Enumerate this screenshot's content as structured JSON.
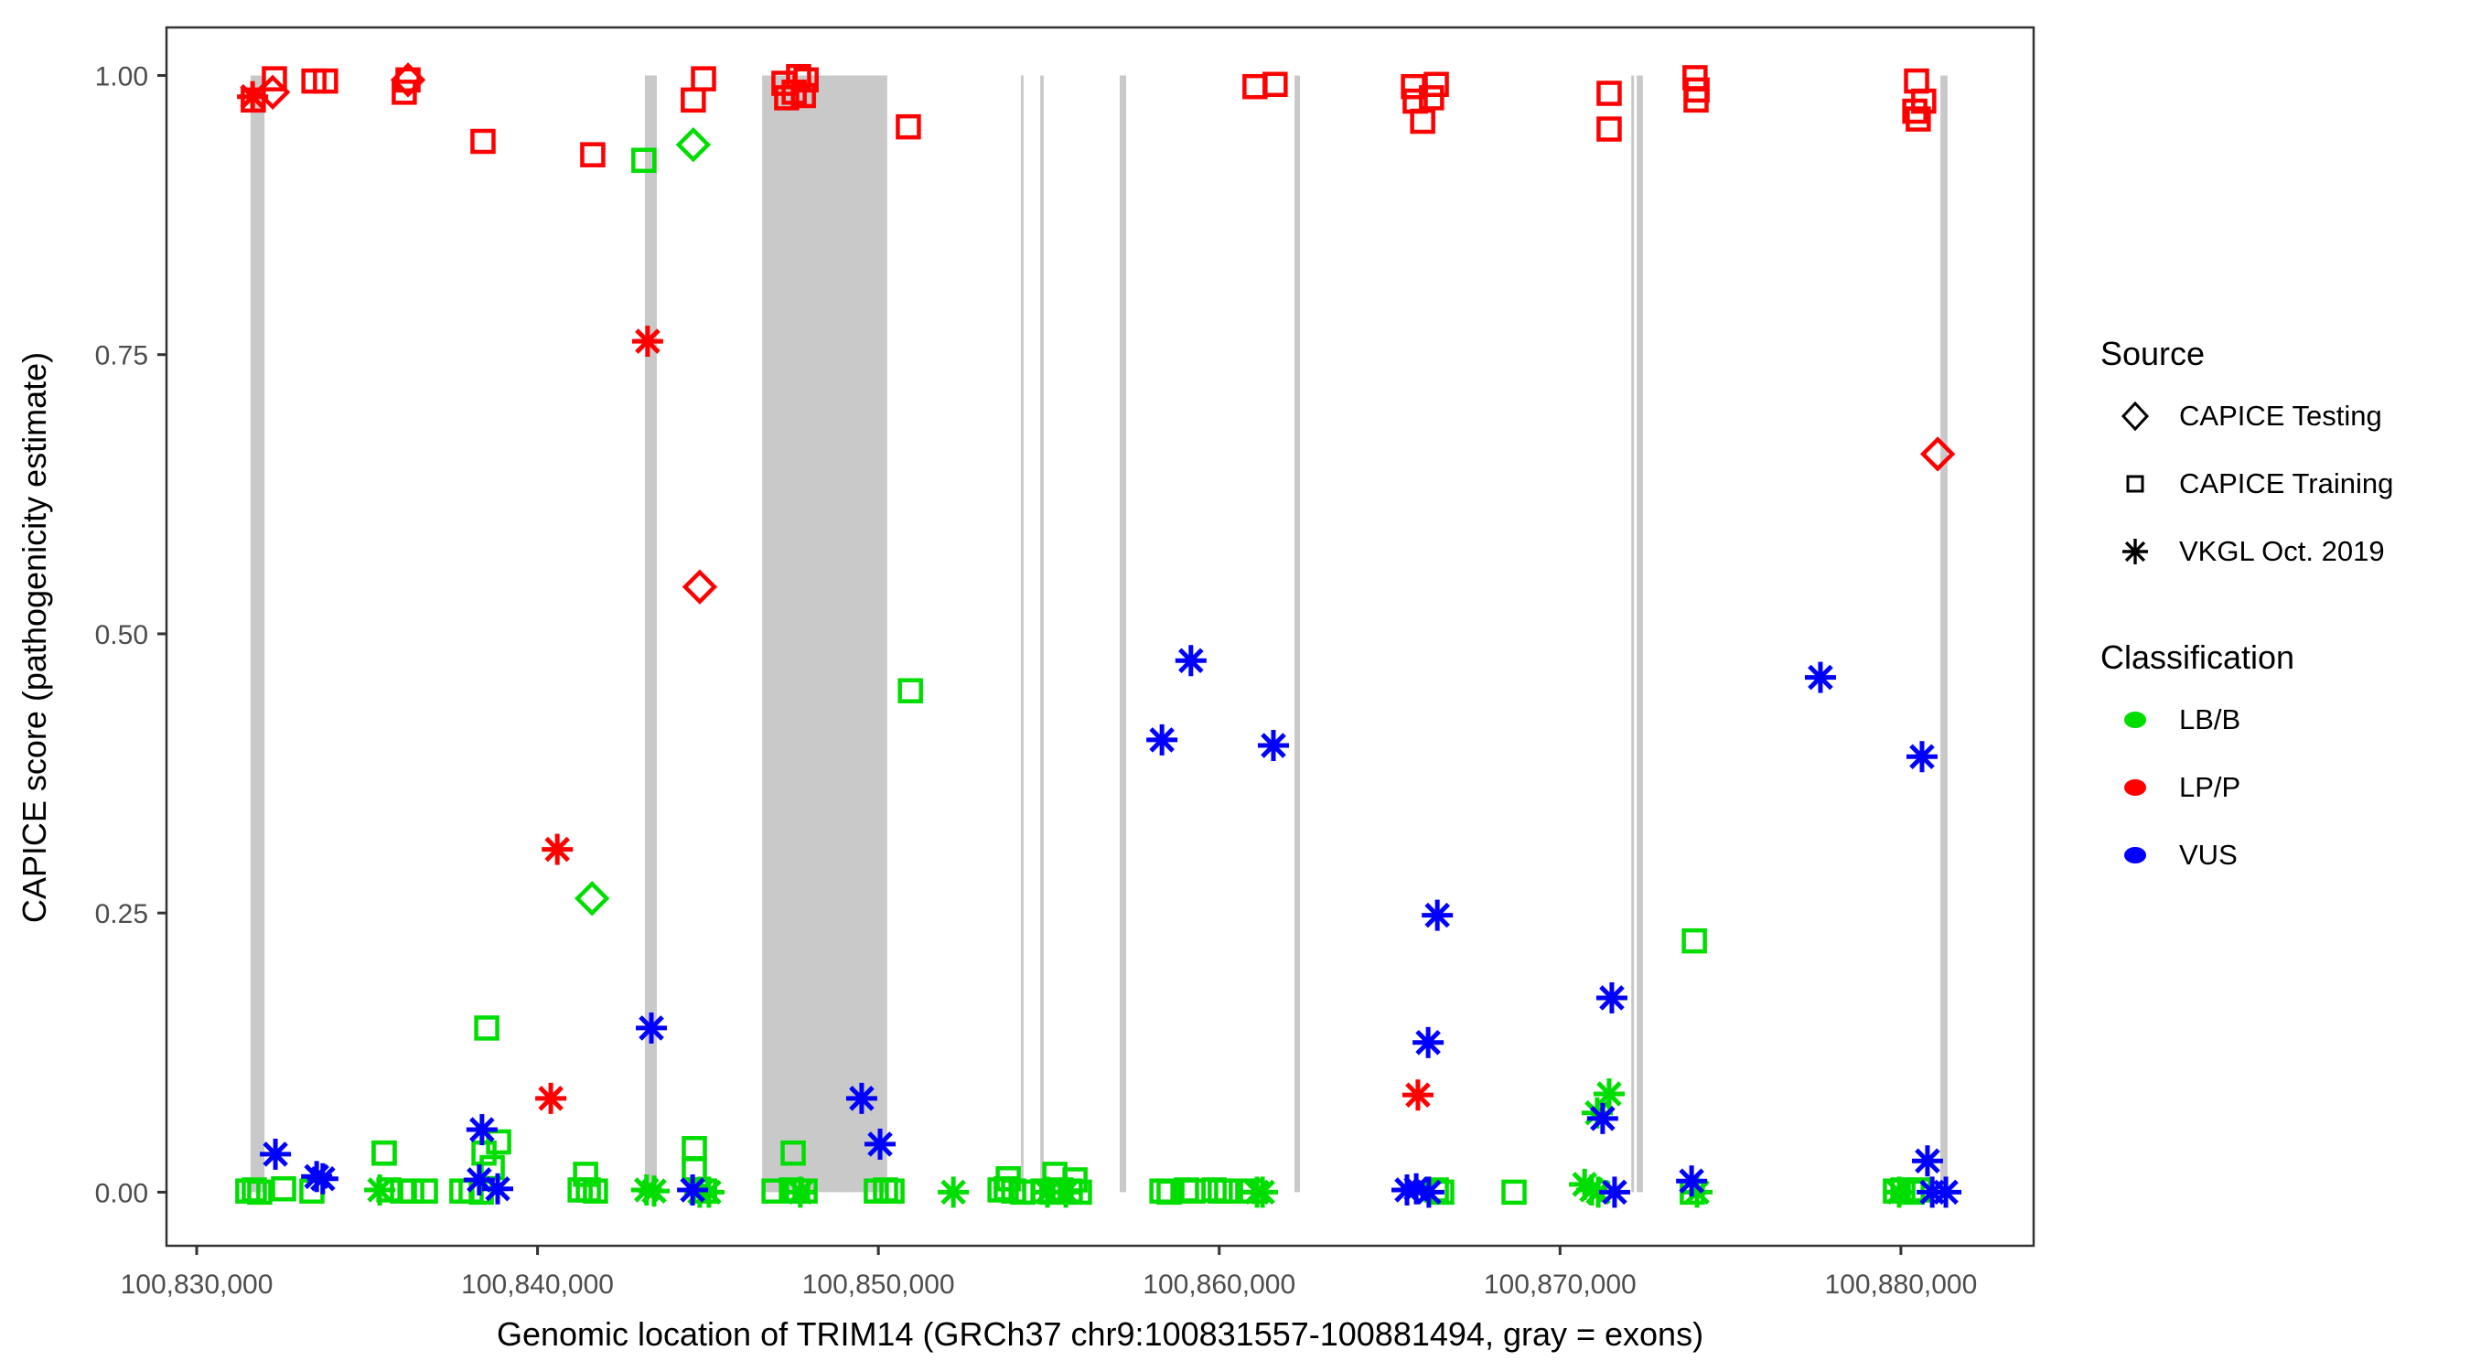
{
  "chart_data": {
    "type": "scatter",
    "xlabel": "Genomic location of TRIM14 (GRCh37 chr9:100831557-100881494, gray = exons)",
    "ylabel": "CAPICE score (pathogenicity estimate)",
    "x_range": [
      100829114,
      100883895
    ],
    "y_range": [
      -0.048,
      1.043
    ],
    "x_ticks": [
      100830000,
      100840000,
      100850000,
      100860000,
      100870000,
      100880000
    ],
    "x_tick_labels": [
      "100,830,000",
      "100,840,000",
      "100,850,000",
      "100,860,000",
      "100,870,000",
      "100,880,000"
    ],
    "y_ticks": [
      0,
      0.25,
      0.5,
      0.75,
      1
    ],
    "y_tick_labels": [
      "0.00",
      "0.25",
      "0.50",
      "0.75",
      "1.00"
    ],
    "grid": "off",
    "colors": {
      "lbb": "#00DD00",
      "lpp": "#FF0000",
      "vus": "#0000FF",
      "exon": "#C9C9C9",
      "axis_text": "#4D4D4D",
      "border": "#333333"
    },
    "exons": [
      [
        100831580,
        100831990
      ],
      [
        100843150,
        100843500
      ],
      [
        100846590,
        100850260
      ],
      [
        100854180,
        100854260
      ],
      [
        100854750,
        100854850
      ],
      [
        100857080,
        100857270
      ],
      [
        100862210,
        100862370
      ],
      [
        100872090,
        100872170
      ],
      [
        100872250,
        100872430
      ],
      [
        100881160,
        100881370
      ]
    ],
    "series": [
      {
        "name": "LB/B CAPICE Training",
        "marker": "square",
        "classification": "LB/B",
        "source": "CAPICE Training",
        "color": "#00DD00",
        "points": [
          [
            100843120,
            0.924
          ],
          [
            100838510,
            0.147
          ],
          [
            100850940,
            0.449
          ],
          [
            100873940,
            0.225
          ],
          [
            100844600,
            0.039
          ],
          [
            100844600,
            0.021
          ],
          [
            100838860,
            0.045
          ],
          [
            100838430,
            0.035
          ],
          [
            100838670,
            0.022
          ],
          [
            100835500,
            0.035
          ],
          [
            100847500,
            0.035
          ],
          [
            100841410,
            0.016
          ],
          [
            100855180,
            0.016
          ],
          [
            100855770,
            0.011
          ],
          [
            100853810,
            0.012
          ],
          [
            100831500,
            0.001
          ],
          [
            100831690,
            0.002
          ],
          [
            100831850,
            0.0
          ],
          [
            100832550,
            0.003
          ],
          [
            100833380,
            0.001
          ],
          [
            100835640,
            0.002
          ],
          [
            100836040,
            0.001
          ],
          [
            100836310,
            0.001
          ],
          [
            100836710,
            0.001
          ],
          [
            100837780,
            0.001
          ],
          [
            100838050,
            0.001
          ],
          [
            100838350,
            0.0
          ],
          [
            100841250,
            0.002
          ],
          [
            100841490,
            0.002
          ],
          [
            100841700,
            0.001
          ],
          [
            100844900,
            0.001
          ],
          [
            100846940,
            0.001
          ],
          [
            100847450,
            0.002
          ],
          [
            100847630,
            0.001
          ],
          [
            100847850,
            0.001
          ],
          [
            100849940,
            0.001
          ],
          [
            100850210,
            0.002
          ],
          [
            100850400,
            0.001
          ],
          [
            100853570,
            0.002
          ],
          [
            100853750,
            0.003
          ],
          [
            100853970,
            0.001
          ],
          [
            100854240,
            0.0
          ],
          [
            100854830,
            0.001
          ],
          [
            100855090,
            0.0
          ],
          [
            100855360,
            0.002
          ],
          [
            100855630,
            0.001
          ],
          [
            100855900,
            0.0
          ],
          [
            100858320,
            0.001
          ],
          [
            100858530,
            0.0
          ],
          [
            100859040,
            0.002
          ],
          [
            100859230,
            0.001
          ],
          [
            100859850,
            0.002
          ],
          [
            100860030,
            0.001
          ],
          [
            100860220,
            0.001
          ],
          [
            100860950,
            0.001
          ],
          [
            100866370,
            0.002
          ],
          [
            100866530,
            0.0
          ],
          [
            100868650,
            0.0
          ],
          [
            100873880,
            0.0
          ],
          [
            100879840,
            0.001
          ],
          [
            100880060,
            0.002
          ],
          [
            100880330,
            0.0
          ],
          [
            100880540,
            0.002
          ]
        ]
      },
      {
        "name": "LB/B CAPICE Testing",
        "marker": "diamond",
        "classification": "LB/B",
        "source": "CAPICE Testing",
        "color": "#00DD00",
        "points": [
          [
            100844570,
            0.938
          ],
          [
            100841600,
            0.263
          ]
        ]
      },
      {
        "name": "LB/B VKGL Oct. 2019",
        "marker": "asterisk",
        "classification": "LB/B",
        "source": "VKGL Oct. 2019",
        "color": "#00DD00",
        "points": [
          [
            100835370,
            0.002
          ],
          [
            100843200,
            0.002
          ],
          [
            100843420,
            0.001
          ],
          [
            100844760,
            0.0
          ],
          [
            100845030,
            0.0
          ],
          [
            100847710,
            0.0
          ],
          [
            100852200,
            0.0
          ],
          [
            100854960,
            0.0
          ],
          [
            100855500,
            0.0
          ],
          [
            100861110,
            0.0
          ],
          [
            100861270,
            0.0
          ],
          [
            100870720,
            0.007
          ],
          [
            100870930,
            0.002
          ],
          [
            100871120,
            0.0
          ],
          [
            100871440,
            0.088
          ],
          [
            100871090,
            0.071
          ],
          [
            100874020,
            0.0
          ],
          [
            100879950,
            0.0
          ]
        ]
      },
      {
        "name": "LP/P CAPICE Training",
        "marker": "square",
        "classification": "LP/P",
        "source": "CAPICE Training",
        "color": "#FF0000",
        "points": [
          [
            100831660,
            0.978
          ],
          [
            100832280,
            0.997
          ],
          [
            100833440,
            0.995
          ],
          [
            100833780,
            0.995
          ],
          [
            100836090,
            0.985
          ],
          [
            100836200,
            0.996
          ],
          [
            100838400,
            0.941
          ],
          [
            100841620,
            0.929
          ],
          [
            100844570,
            0.978
          ],
          [
            100844870,
            0.997
          ],
          [
            100847230,
            0.993
          ],
          [
            100847660,
            0.999
          ],
          [
            100847880,
            0.996
          ],
          [
            100847530,
            0.985
          ],
          [
            100847800,
            0.982
          ],
          [
            100847310,
            0.98
          ],
          [
            100850880,
            0.954
          ],
          [
            100861050,
            0.99
          ],
          [
            100861640,
            0.992
          ],
          [
            100865700,
            0.99
          ],
          [
            100866370,
            0.992
          ],
          [
            100866230,
            0.98
          ],
          [
            100865750,
            0.977
          ],
          [
            100865970,
            0.959
          ],
          [
            100871440,
            0.984
          ],
          [
            100871440,
            0.952
          ],
          [
            100873960,
            0.998
          ],
          [
            100874020,
            0.987
          ],
          [
            100873990,
            0.978
          ],
          [
            100880460,
            0.995
          ],
          [
            100880670,
            0.977
          ],
          [
            100880410,
            0.968
          ],
          [
            100880510,
            0.961
          ]
        ]
      },
      {
        "name": "LP/P CAPICE Testing",
        "marker": "diamond",
        "classification": "LP/P",
        "source": "CAPICE Testing",
        "color": "#FF0000",
        "points": [
          [
            100832230,
            0.985
          ],
          [
            100836200,
            0.996
          ],
          [
            100844760,
            0.542
          ],
          [
            100881080,
            0.661
          ]
        ]
      },
      {
        "name": "LP/P VKGL Oct. 2019",
        "marker": "asterisk",
        "classification": "LP/P",
        "source": "VKGL Oct. 2019",
        "color": "#FF0000",
        "points": [
          [
            100831640,
            0.981
          ],
          [
            100843230,
            0.762
          ],
          [
            100840580,
            0.307
          ],
          [
            100840390,
            0.084
          ],
          [
            100865830,
            0.087
          ]
        ]
      },
      {
        "name": "VUS VKGL Oct. 2019",
        "marker": "asterisk",
        "classification": "VUS",
        "source": "VKGL Oct. 2019",
        "color": "#0000FF",
        "points": [
          [
            100859170,
            0.476
          ],
          [
            100858320,
            0.405
          ],
          [
            100861590,
            0.4
          ],
          [
            100877640,
            0.461
          ],
          [
            100880620,
            0.39
          ],
          [
            100866400,
            0.248
          ],
          [
            100866130,
            0.134
          ],
          [
            100871520,
            0.174
          ],
          [
            100843340,
            0.147
          ],
          [
            100849510,
            0.084
          ],
          [
            100850050,
            0.043
          ],
          [
            100838370,
            0.056
          ],
          [
            100838290,
            0.011
          ],
          [
            100838830,
            0.003
          ],
          [
            100832310,
            0.034
          ],
          [
            100833520,
            0.014
          ],
          [
            100833700,
            0.012
          ],
          [
            100844550,
            0.002
          ],
          [
            100865510,
            0.002
          ],
          [
            100865780,
            0.003
          ],
          [
            100866150,
            0.0
          ],
          [
            100871250,
            0.066
          ],
          [
            100871600,
            0.0
          ],
          [
            100873860,
            0.01
          ],
          [
            100880780,
            0.028
          ],
          [
            100880920,
            0.0
          ],
          [
            100881320,
            0.0
          ]
        ]
      },
      {
        "name": "",
        "marker": "square",
        "classification": "LB/B",
        "source": "CAPICE Training",
        "color": "#00DD00",
        "points": [
          [
            100835500,
            0.035
          ]
        ]
      }
    ],
    "legend": {
      "source": {
        "title": "Source",
        "items": [
          {
            "label": "CAPICE Testing",
            "marker": "diamond"
          },
          {
            "label": "CAPICE Training",
            "marker": "square"
          },
          {
            "label": "VKGL Oct. 2019",
            "marker": "asterisk"
          }
        ]
      },
      "classification": {
        "title": "Classification",
        "items": [
          {
            "label": "LB/B",
            "color": "#00DD00"
          },
          {
            "label": "LP/P",
            "color": "#FF0000"
          },
          {
            "label": "VUS",
            "color": "#0000FF"
          }
        ]
      }
    }
  }
}
